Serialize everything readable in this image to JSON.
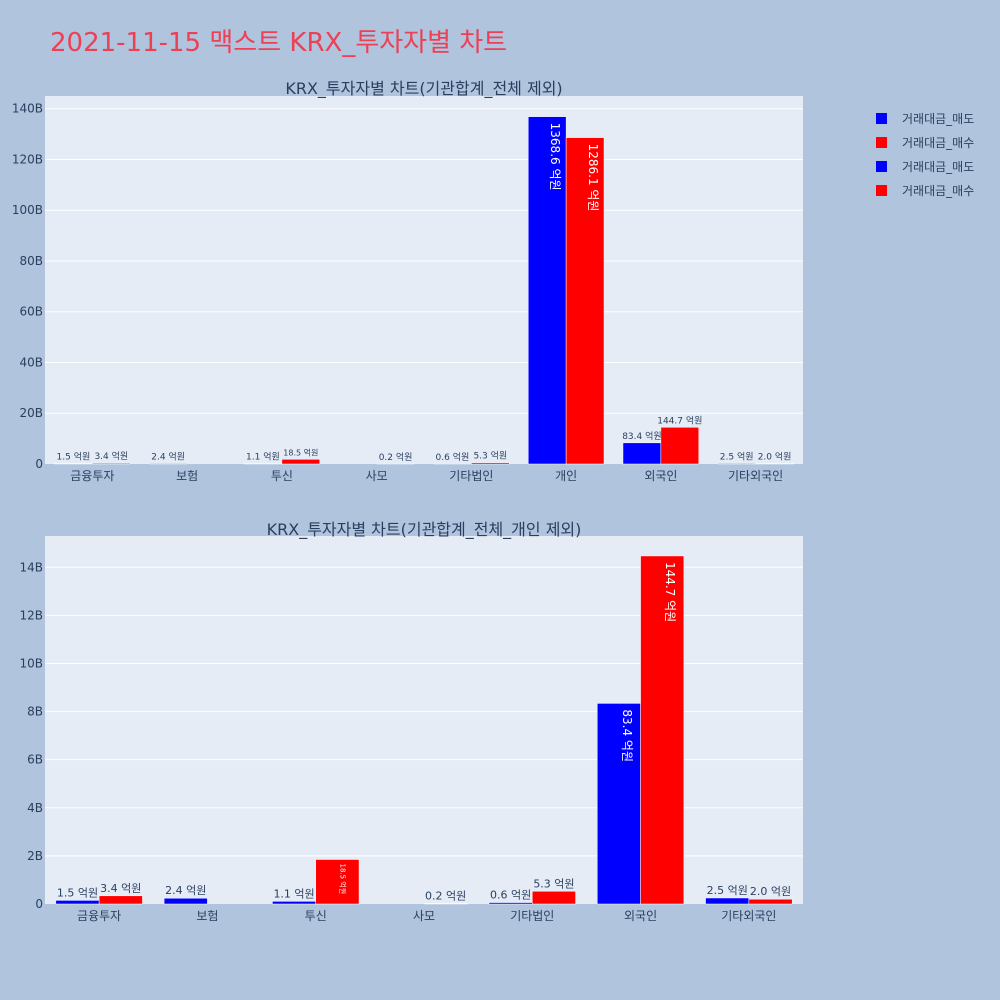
{
  "page": {
    "title": "2021-11-15 맥스트 KRX_투자자별 차트"
  },
  "colors": {
    "sell": "#0000ff",
    "buy": "#ff0000",
    "plot_bg": "#e5ecf6",
    "page_bg": "#b0c4de",
    "text": "#2a3f5f",
    "title": "#ee4055"
  },
  "legend": {
    "items": [
      {
        "label": "거래대금_매도",
        "color": "#0000ff"
      },
      {
        "label": "거래대금_매수",
        "color": "#ff0000"
      },
      {
        "label": "거래대금_매도",
        "color": "#0000ff"
      },
      {
        "label": "거래대금_매수",
        "color": "#ff0000"
      }
    ]
  },
  "chart_data": [
    {
      "type": "bar",
      "title": "KRX_투자자별 차트(기관합계_전체 제외)",
      "categories": [
        "금융투자",
        "보험",
        "투신",
        "사모",
        "기타법인",
        "개인",
        "외국인",
        "기타외국인"
      ],
      "ylim": [
        0,
        145
      ],
      "yticks": [
        0,
        20,
        40,
        60,
        80,
        100,
        120,
        140
      ],
      "ytick_labels": [
        "0",
        "20B",
        "40B",
        "60B",
        "80B",
        "100B",
        "120B",
        "140B"
      ],
      "series": [
        {
          "name": "거래대금_매도",
          "color": "#0000ff",
          "values": [
            0.15,
            0.24,
            0.11,
            0,
            0.06,
            136.86,
            8.34,
            0.25
          ],
          "labels": [
            "1.5 억원",
            "2.4 억원",
            "1.1 억원",
            "",
            "0.6 억원",
            "1368.6 억원",
            "83.4 억원",
            "2.5 억원"
          ]
        },
        {
          "name": "거래대금_매수",
          "color": "#ff0000",
          "values": [
            0.34,
            0,
            1.85,
            0.02,
            0.53,
            128.61,
            14.47,
            0.2
          ],
          "labels": [
            "3.4 억원",
            "",
            "18.5 억원",
            "0.2 억원",
            "5.3 억원",
            "1286.1 억원",
            "144.7 억원",
            "2.0 억원"
          ]
        }
      ]
    },
    {
      "type": "bar",
      "title": "KRX_투자자별 차트(기관합계_전체_개인 제외)",
      "categories": [
        "금융투자",
        "보험",
        "투신",
        "사모",
        "기타법인",
        "외국인",
        "기타외국인"
      ],
      "ylim": [
        0,
        15.3
      ],
      "yticks": [
        0,
        2,
        4,
        6,
        8,
        10,
        12,
        14
      ],
      "ytick_labels": [
        "0",
        "2B",
        "4B",
        "6B",
        "8B",
        "10B",
        "12B",
        "14B"
      ],
      "series": [
        {
          "name": "거래대금_매도",
          "color": "#0000ff",
          "values": [
            0.15,
            0.24,
            0.11,
            0,
            0.06,
            8.34,
            0.25
          ],
          "labels": [
            "1.5 억원",
            "2.4 억원",
            "1.1 억원",
            "",
            "0.6 억원",
            "83.4 억원",
            "2.5 억원"
          ]
        },
        {
          "name": "거래대금_매수",
          "color": "#ff0000",
          "values": [
            0.34,
            0,
            1.85,
            0.02,
            0.53,
            14.47,
            0.2
          ],
          "labels": [
            "3.4 억원",
            "",
            "18.5 억원",
            "0.2 억원",
            "5.3 억원",
            "144.7 억원",
            "2.0 억원"
          ]
        }
      ]
    }
  ]
}
